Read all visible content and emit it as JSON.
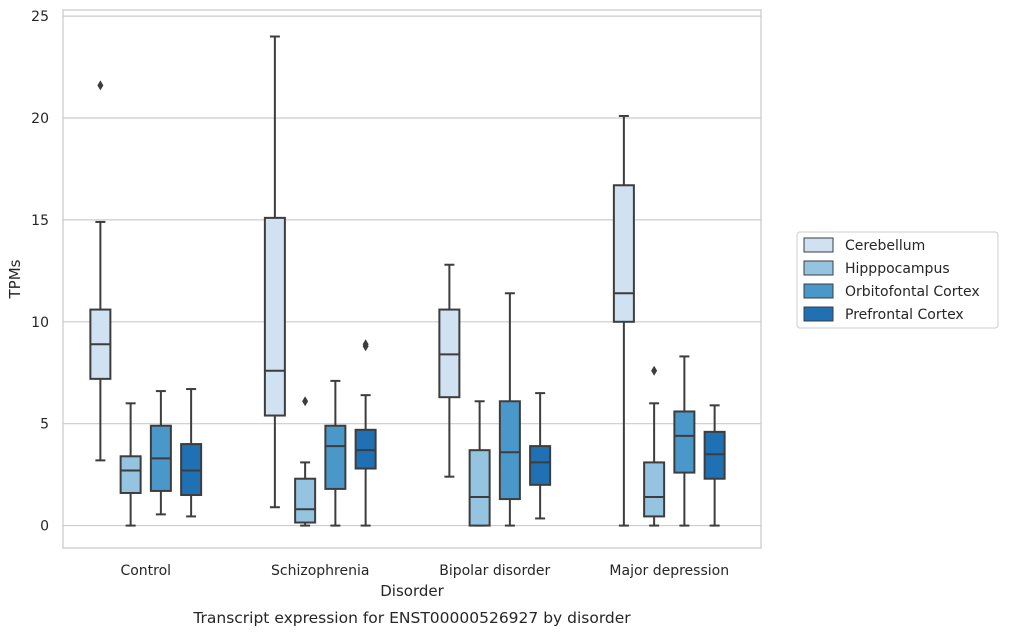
{
  "chart_data": {
    "type": "box",
    "caption": "Transcript expression for ENST00000526927 by disorder",
    "xlabel": "Disorder",
    "ylabel": "TPMs",
    "ylim": [
      -1.1,
      25.3
    ],
    "yticks": [
      0,
      5,
      10,
      15,
      20,
      25
    ],
    "grid": "horizontal",
    "legend_position": "right",
    "categories": [
      "Control",
      "Schizophrenia",
      "Bipolar disorder",
      "Major depression"
    ],
    "series": [
      {
        "name": "Cerebellum",
        "color": "#d0e1f2",
        "boxes": [
          {
            "whisker_low": 3.2,
            "q1": 7.2,
            "median": 8.9,
            "q3": 10.6,
            "whisker_high": 14.9,
            "outliers": [
              21.6
            ]
          },
          {
            "whisker_low": 0.9,
            "q1": 5.4,
            "median": 7.6,
            "q3": 15.1,
            "whisker_high": 24.0,
            "outliers": []
          },
          {
            "whisker_low": 2.4,
            "q1": 6.3,
            "median": 8.4,
            "q3": 10.6,
            "whisker_high": 12.8,
            "outliers": []
          },
          {
            "whisker_low": 0.0,
            "q1": 10.0,
            "median": 11.4,
            "q3": 16.7,
            "whisker_high": 20.1,
            "outliers": []
          }
        ]
      },
      {
        "name": "Hipppocampus",
        "color": "#94c4df",
        "boxes": [
          {
            "whisker_low": 0.0,
            "q1": 1.6,
            "median": 2.7,
            "q3": 3.4,
            "whisker_high": 6.0,
            "outliers": []
          },
          {
            "whisker_low": 0.0,
            "q1": 0.15,
            "median": 0.8,
            "q3": 2.3,
            "whisker_high": 3.1,
            "outliers": [
              6.1
            ]
          },
          {
            "whisker_low": 0.0,
            "q1": 0.0,
            "median": 1.4,
            "q3": 3.7,
            "whisker_high": 6.1,
            "outliers": []
          },
          {
            "whisker_low": 0.0,
            "q1": 0.45,
            "median": 1.4,
            "q3": 3.1,
            "whisker_high": 6.0,
            "outliers": [
              7.6
            ]
          }
        ]
      },
      {
        "name": "Orbitofontal Cortex",
        "color": "#4a98c9",
        "boxes": [
          {
            "whisker_low": 0.55,
            "q1": 1.7,
            "median": 3.3,
            "q3": 4.9,
            "whisker_high": 6.6,
            "outliers": []
          },
          {
            "whisker_low": 0.0,
            "q1": 1.8,
            "median": 3.9,
            "q3": 4.9,
            "whisker_high": 7.1,
            "outliers": []
          },
          {
            "whisker_low": 0.0,
            "q1": 1.3,
            "median": 3.6,
            "q3": 6.1,
            "whisker_high": 11.4,
            "outliers": []
          },
          {
            "whisker_low": 0.0,
            "q1": 2.6,
            "median": 4.4,
            "q3": 5.6,
            "whisker_high": 8.3,
            "outliers": []
          }
        ]
      },
      {
        "name": "Prefrontal Cortex",
        "color": "#2070b4",
        "boxes": [
          {
            "whisker_low": 0.45,
            "q1": 1.5,
            "median": 2.7,
            "q3": 4.0,
            "whisker_high": 6.7,
            "outliers": []
          },
          {
            "whisker_low": 0.0,
            "q1": 2.8,
            "median": 3.7,
            "q3": 4.7,
            "whisker_high": 6.4,
            "outliers": [
              8.8,
              8.9
            ]
          },
          {
            "whisker_low": 0.35,
            "q1": 2.0,
            "median": 3.1,
            "q3": 3.9,
            "whisker_high": 6.5,
            "outliers": []
          },
          {
            "whisker_low": 0.0,
            "q1": 2.3,
            "median": 3.5,
            "q3": 4.6,
            "whisker_high": 5.9,
            "outliers": []
          }
        ]
      }
    ]
  }
}
